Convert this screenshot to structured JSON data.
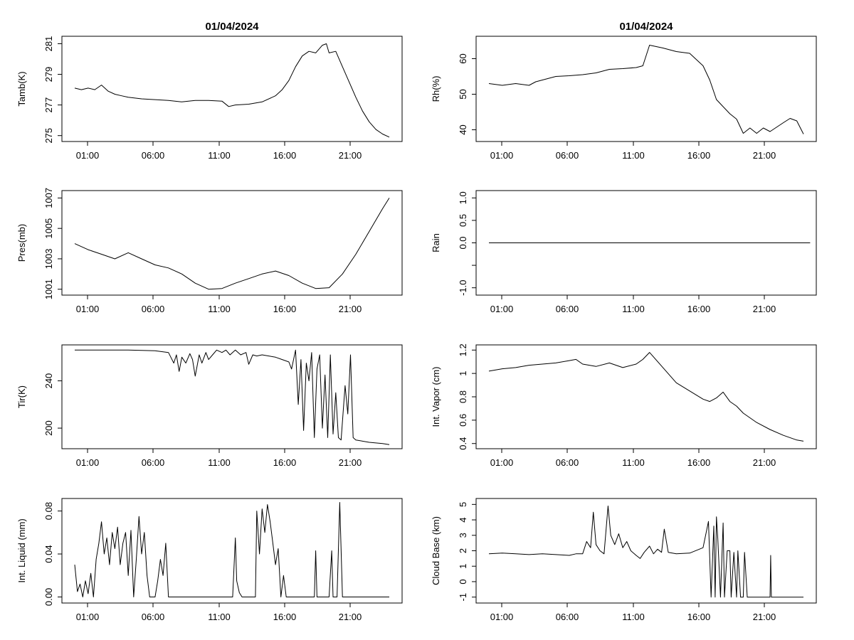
{
  "chart_data": [
    {
      "type": "line",
      "title": "01/04/2024",
      "ylabel": "Tamb(K)",
      "ylim": [
        274.8,
        281.3
      ],
      "yticks": [
        275,
        277,
        279,
        281
      ],
      "xticks": [
        "01:00",
        "06:00",
        "11:00",
        "16:00",
        "21:00"
      ],
      "x_hours": [
        0.0,
        0.5,
        1.0,
        1.5,
        2.0,
        2.5,
        3.0,
        3.5,
        4.0,
        5.0,
        6.0,
        7.0,
        8.0,
        9.0,
        10.0,
        11.0,
        11.5,
        12.0,
        13.0,
        14.0,
        15.0,
        15.5,
        16.0,
        16.5,
        17.0,
        17.5,
        18.0,
        18.5,
        18.8,
        19.0,
        19.5,
        20.0,
        20.5,
        21.0,
        21.5,
        22.0,
        22.5,
        23.0,
        23.5
      ],
      "values": [
        278.1,
        278.0,
        278.1,
        278.0,
        278.3,
        277.9,
        277.7,
        277.6,
        277.5,
        277.4,
        277.35,
        277.3,
        277.2,
        277.3,
        277.3,
        277.25,
        276.9,
        277.0,
        277.05,
        277.2,
        277.6,
        278.0,
        278.6,
        279.5,
        280.2,
        280.5,
        280.4,
        280.9,
        281.0,
        280.4,
        280.5,
        279.5,
        278.5,
        277.5,
        276.6,
        275.9,
        275.4,
        275.1,
        274.9
      ]
    },
    {
      "type": "line",
      "title": "01/04/2024",
      "ylabel": "Rh(%)",
      "ylim": [
        37.5,
        65.5
      ],
      "yticks": [
        40,
        50,
        60
      ],
      "xticks": [
        "01:00",
        "06:00",
        "11:00",
        "16:00",
        "21:00"
      ],
      "x_hours": [
        0.0,
        1.0,
        2.0,
        3.0,
        3.5,
        4.0,
        5.0,
        6.0,
        7.0,
        8.0,
        9.0,
        10.0,
        11.0,
        11.5,
        12.0,
        13.0,
        14.0,
        15.0,
        16.0,
        16.5,
        17.0,
        17.5,
        18.0,
        18.5,
        19.0,
        19.5,
        20.0,
        20.5,
        21.0,
        22.0,
        22.5,
        23.0,
        23.5
      ],
      "values": [
        53,
        52.5,
        53,
        52.5,
        53.5,
        54,
        55,
        55.2,
        55.5,
        56,
        57,
        57.2,
        57.5,
        58,
        63.8,
        63,
        62,
        61.5,
        58,
        54,
        48.5,
        46.5,
        44.5,
        43,
        39,
        40.5,
        39,
        40.5,
        39.5,
        42,
        43.2,
        42.5,
        38.8
      ]
    },
    {
      "type": "line",
      "title": "",
      "ylabel": "Pres(mb)",
      "ylim": [
        1000.8,
        1007.3
      ],
      "yticks": [
        1001,
        1003,
        1005,
        1007
      ],
      "xticks": [
        "01:00",
        "06:00",
        "11:00",
        "16:00",
        "21:00"
      ],
      "x_hours": [
        0.0,
        1.0,
        2.0,
        3.0,
        4.0,
        5.0,
        6.0,
        7.0,
        8.0,
        9.0,
        10.0,
        11.0,
        12.0,
        13.0,
        14.0,
        15.0,
        16.0,
        17.0,
        18.0,
        19.0,
        20.0,
        21.0,
        22.0,
        23.0,
        23.5
      ],
      "values": [
        1004.0,
        1003.6,
        1003.3,
        1003.0,
        1003.4,
        1003.0,
        1002.6,
        1002.4,
        1002.0,
        1001.4,
        1001.0,
        1001.05,
        1001.4,
        1001.7,
        1002.0,
        1002.2,
        1001.9,
        1001.4,
        1001.05,
        1001.1,
        1002.0,
        1003.3,
        1004.8,
        1006.3,
        1007.0
      ]
    },
    {
      "type": "line",
      "title": "",
      "ylabel": "Rain",
      "ylim": [
        -1.1,
        1.1
      ],
      "yticks": [
        -1.0,
        -0.5,
        0.0,
        0.5,
        1.0
      ],
      "ytick_labels": [
        "-1.0",
        "",
        "0.0",
        "0.5",
        "1.0"
      ],
      "xticks": [
        "01:00",
        "06:00",
        "11:00",
        "16:00",
        "21:00"
      ],
      "x_hours": [
        0.0,
        24.0
      ],
      "values": [
        0.0,
        0.0
      ]
    },
    {
      "type": "line",
      "title": "",
      "ylabel": "Tir(K)",
      "ylim": [
        185,
        268
      ],
      "yticks": [
        200,
        240
      ],
      "xticks": [
        "01:00",
        "06:00",
        "11:00",
        "16:00",
        "21:00"
      ],
      "x_hours": [
        0.0,
        2.0,
        4.0,
        6.0,
        7.0,
        7.4,
        7.6,
        7.8,
        8.0,
        8.3,
        8.6,
        8.8,
        9.0,
        9.3,
        9.5,
        9.8,
        10.0,
        10.3,
        10.6,
        11.0,
        11.3,
        11.6,
        12.0,
        12.4,
        12.8,
        13.0,
        13.3,
        13.6,
        14.0,
        15.0,
        15.5,
        16.0,
        16.2,
        16.5,
        16.7,
        16.9,
        17.1,
        17.3,
        17.5,
        17.7,
        17.9,
        18.1,
        18.3,
        18.5,
        18.7,
        18.9,
        19.1,
        19.3,
        19.5,
        19.7,
        19.9,
        20.2,
        20.4,
        20.6,
        20.8,
        21.0,
        22.0,
        23.0,
        23.5
      ],
      "values": [
        266,
        266,
        266,
        265.5,
        264,
        255,
        262,
        248,
        260,
        255,
        263,
        258,
        244,
        262,
        255,
        264,
        258,
        262,
        266,
        264,
        266,
        262,
        266,
        262,
        264,
        254,
        262,
        261,
        262,
        260,
        258,
        256,
        250,
        266,
        220,
        258,
        198,
        255,
        240,
        264,
        192,
        250,
        262,
        200,
        245,
        192,
        262,
        195,
        230,
        192,
        190,
        236,
        212,
        262,
        192,
        190,
        188,
        187,
        186
      ]
    },
    {
      "type": "line",
      "title": "",
      "ylabel": "Int. Vapor (cm)",
      "ylim": [
        0.38,
        1.22
      ],
      "yticks": [
        0.4,
        0.6,
        0.8,
        1.0,
        1.2
      ],
      "xticks": [
        "01:00",
        "06:00",
        "11:00",
        "16:00",
        "21:00"
      ],
      "x_hours": [
        0.0,
        1.0,
        2.0,
        3.0,
        4.0,
        5.0,
        6.0,
        6.5,
        7.0,
        8.0,
        9.0,
        10.0,
        11.0,
        11.5,
        12.0,
        13.0,
        14.0,
        15.0,
        16.0,
        16.5,
        17.0,
        17.5,
        18.0,
        18.5,
        19.0,
        20.0,
        21.0,
        22.0,
        23.0,
        23.5
      ],
      "values": [
        1.02,
        1.04,
        1.05,
        1.07,
        1.08,
        1.09,
        1.11,
        1.12,
        1.08,
        1.06,
        1.09,
        1.05,
        1.08,
        1.12,
        1.18,
        1.05,
        0.92,
        0.85,
        0.78,
        0.76,
        0.79,
        0.84,
        0.76,
        0.72,
        0.66,
        0.58,
        0.52,
        0.47,
        0.43,
        0.42
      ]
    },
    {
      "type": "line",
      "title": "",
      "ylabel": "Int. Liquid (mm)",
      "ylim": [
        -0.003,
        0.089
      ],
      "yticks": [
        0.0,
        0.04,
        0.08
      ],
      "ytick_labels": [
        "0.00",
        "0.04",
        "0.08"
      ],
      "xticks": [
        "01:00",
        "06:00",
        "11:00",
        "16:00",
        "21:00"
      ],
      "x_hours": [
        0.0,
        0.2,
        0.4,
        0.6,
        0.8,
        1.0,
        1.2,
        1.4,
        1.6,
        1.8,
        2.0,
        2.2,
        2.4,
        2.6,
        2.8,
        3.0,
        3.2,
        3.4,
        3.6,
        3.8,
        4.0,
        4.2,
        4.4,
        4.6,
        4.8,
        5.0,
        5.2,
        5.4,
        5.6,
        5.8,
        6.0,
        6.2,
        6.4,
        6.6,
        6.8,
        7.0,
        7.2,
        8.0,
        9.0,
        10.0,
        11.0,
        11.8,
        12.0,
        12.1,
        12.3,
        12.5,
        13.0,
        13.5,
        13.6,
        13.8,
        14.0,
        14.2,
        14.4,
        14.6,
        14.8,
        15.0,
        15.2,
        15.4,
        15.6,
        15.8,
        16.0,
        17.0,
        17.9,
        18.0,
        18.1,
        19.0,
        19.2,
        19.3,
        19.4,
        19.6,
        19.8,
        20.0,
        21.0,
        22.0,
        23.0,
        23.5
      ],
      "values": [
        0.03,
        0.005,
        0.012,
        0.0,
        0.015,
        0.003,
        0.022,
        0.0,
        0.035,
        0.05,
        0.07,
        0.04,
        0.055,
        0.03,
        0.06,
        0.045,
        0.065,
        0.03,
        0.05,
        0.06,
        0.02,
        0.062,
        0.0,
        0.035,
        0.075,
        0.04,
        0.06,
        0.02,
        0.0,
        0.0,
        0.0,
        0.015,
        0.035,
        0.02,
        0.05,
        0.0,
        0.0,
        0.0,
        0.0,
        0.0,
        0.0,
        0.0,
        0.055,
        0.015,
        0.004,
        0.0,
        0.0,
        0.0,
        0.08,
        0.04,
        0.082,
        0.06,
        0.086,
        0.07,
        0.05,
        0.03,
        0.045,
        0.0,
        0.02,
        0.0,
        0.0,
        0.0,
        0.0,
        0.043,
        0.0,
        0.0,
        0.043,
        0.0,
        0.0,
        0.0,
        0.088,
        0.0,
        0.0,
        0.0,
        0.0,
        0.0
      ]
    },
    {
      "type": "line",
      "title": "",
      "ylabel": "Cloud Base (km)",
      "ylim": [
        -1.2,
        5.2
      ],
      "yticks": [
        -1,
        0,
        1,
        2,
        3,
        4,
        5
      ],
      "xticks": [
        "01:00",
        "06:00",
        "11:00",
        "16:00",
        "21:00"
      ],
      "x_hours": [
        0.0,
        1.0,
        2.0,
        3.0,
        4.0,
        5.0,
        6.0,
        6.5,
        7.0,
        7.3,
        7.6,
        7.8,
        8.0,
        8.3,
        8.6,
        8.9,
        9.1,
        9.4,
        9.7,
        10.0,
        10.3,
        10.6,
        11.0,
        11.3,
        11.6,
        12.0,
        12.3,
        12.6,
        12.9,
        13.1,
        13.4,
        14.0,
        15.0,
        16.0,
        16.4,
        16.6,
        16.8,
        16.9,
        17.0,
        17.1,
        17.3,
        17.5,
        17.6,
        17.8,
        18.0,
        18.1,
        18.3,
        18.5,
        18.6,
        18.8,
        19.0,
        19.1,
        19.3,
        19.4,
        19.6,
        19.8,
        20.2,
        21.0,
        21.05,
        21.1,
        21.5,
        22.0,
        23.0,
        23.5
      ],
      "values": [
        1.8,
        1.85,
        1.8,
        1.75,
        1.8,
        1.75,
        1.7,
        1.8,
        1.8,
        2.6,
        2.2,
        4.5,
        2.4,
        2.0,
        1.8,
        4.9,
        3.0,
        2.4,
        3.1,
        2.2,
        2.6,
        2.0,
        1.7,
        1.5,
        1.9,
        2.3,
        1.8,
        2.1,
        1.9,
        3.4,
        1.9,
        1.8,
        1.85,
        2.2,
        3.9,
        -1.0,
        3.6,
        -1.0,
        4.2,
        2.8,
        -1.0,
        3.8,
        -1.0,
        2.0,
        2.0,
        -1.0,
        1.9,
        -1.0,
        2.0,
        -1.0,
        -1.0,
        1.9,
        -1.0,
        -1.0,
        -1.0,
        -1.0,
        -1.0,
        -1.0,
        1.7,
        -1.0,
        -1.0,
        -1.0,
        -1.0,
        -1.0
      ]
    }
  ]
}
